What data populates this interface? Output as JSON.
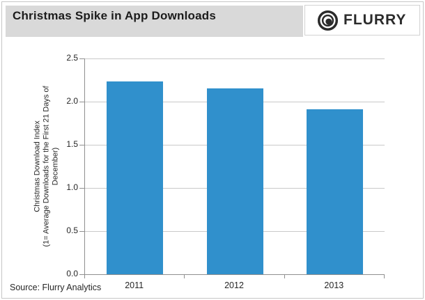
{
  "header": {
    "title": "Christmas Spike in App Downloads",
    "logo_text": "FLURRY",
    "logo_icon": "flurry-lens-icon"
  },
  "footer": {
    "source": "Source: Flurry Analytics"
  },
  "colors": {
    "bar": "#3090CC",
    "header_bg": "#D9D9D9",
    "gridline": "#C9C9C9",
    "axis": "#8F8F8F",
    "logo": "#2B2B2B"
  },
  "chart_data": {
    "type": "bar",
    "title": "Christmas Spike in App Downloads",
    "categories": [
      "2011",
      "2012",
      "2013"
    ],
    "values": [
      2.23,
      2.15,
      1.91
    ],
    "xlabel": "",
    "ylabel": "Christmas Download Index (1= Average Downloads for the First 21 Days of December)",
    "ylabel_lines": [
      "Christmas Download Index",
      "(1= Average Downloads for the First 21 Days of",
      "December)"
    ],
    "ylim": [
      0,
      2.5
    ],
    "ytick_step": 0.5,
    "ytick_labels": [
      "0.0",
      "0.5",
      "1.0",
      "1.5",
      "2.0",
      "2.5"
    ],
    "grid": true,
    "legend": false,
    "source": "Source: Flurry Analytics"
  }
}
